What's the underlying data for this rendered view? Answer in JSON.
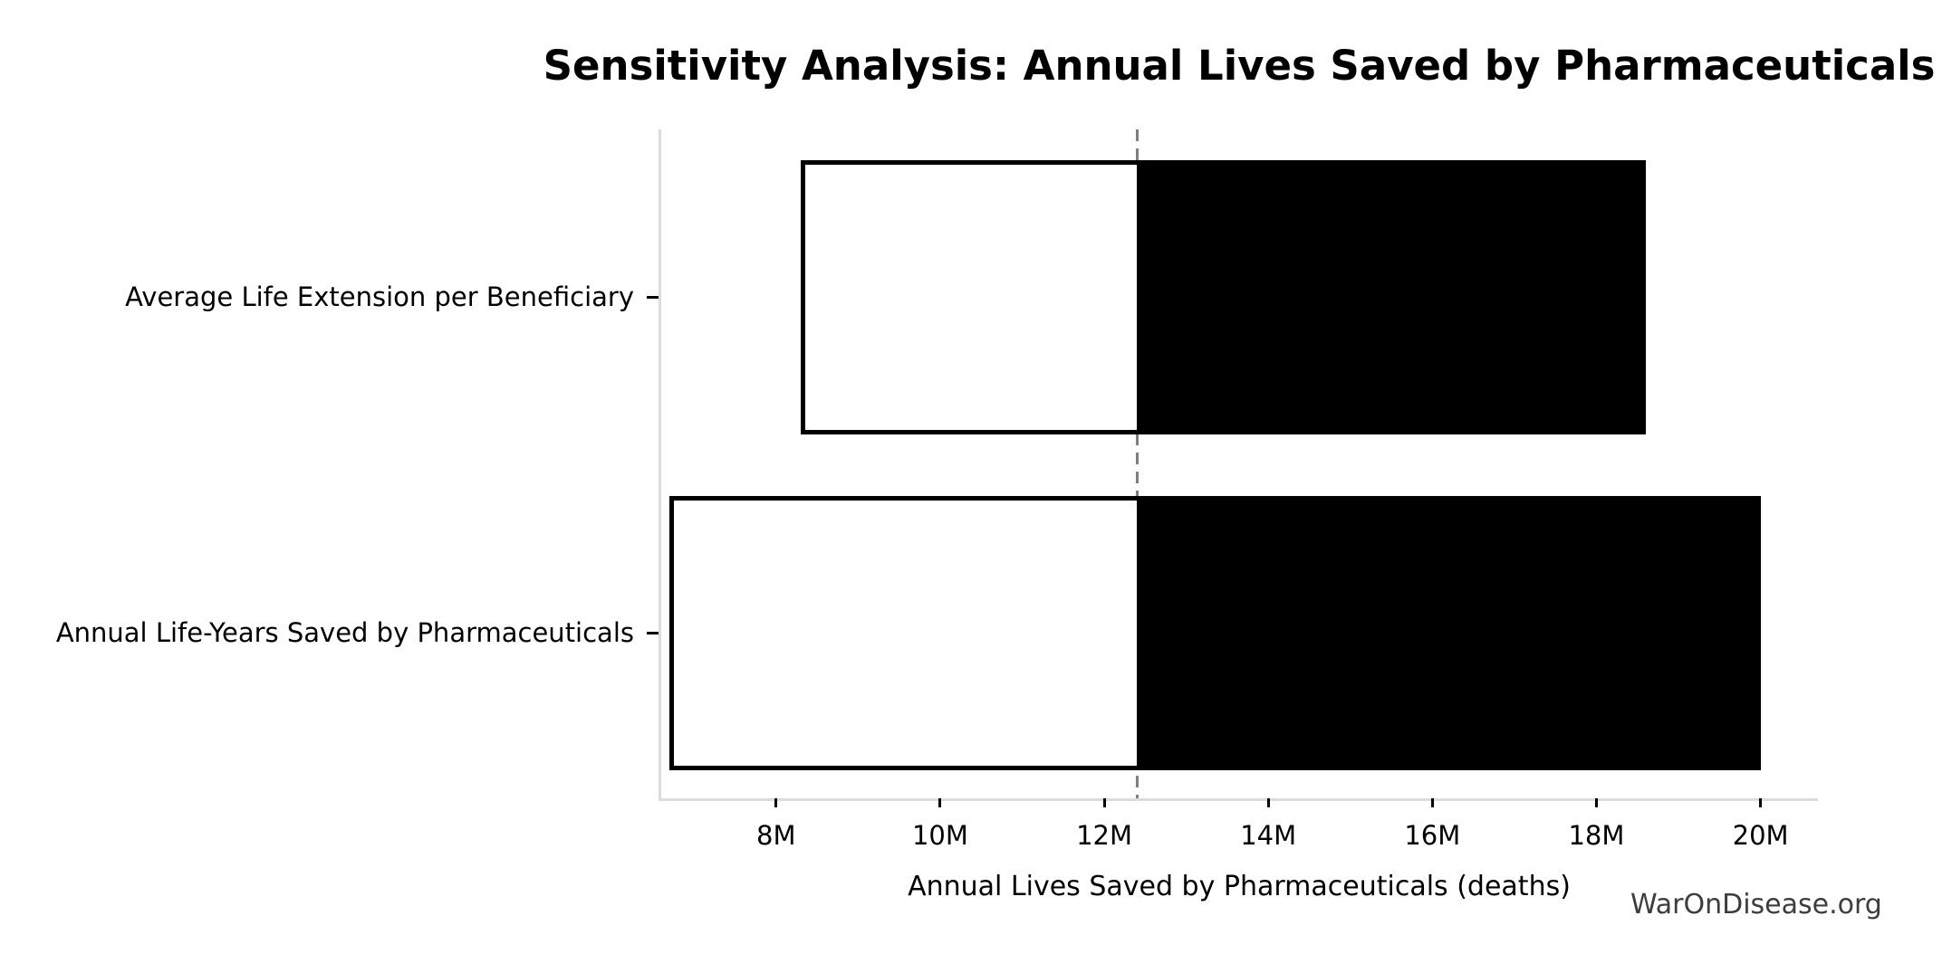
{
  "title": "Sensitivity Analysis: Annual Lives Saved by Pharmaceuticals",
  "watermark": "WarOnDisease.org",
  "chart_data": {
    "type": "bar",
    "subtype": "tornado-sensitivity",
    "orientation": "horizontal",
    "title": "Sensitivity Analysis: Annual Lives Saved by Pharmaceuticals",
    "xlabel": "Annual Lives Saved by Pharmaceuticals (deaths)",
    "ylabel": "",
    "unit": "millions of deaths",
    "baseline_value_millions": 12.4,
    "categories": [
      "Average Life Extension per Beneficiary",
      "Annual Life-Years Saved by Pharmaceuticals"
    ],
    "bars": [
      {
        "label": "Average Life Extension per Beneficiary",
        "low_millions": 8.3,
        "high_millions": 18.6
      },
      {
        "label": "Annual Life-Years Saved by Pharmaceuticals",
        "low_millions": 6.7,
        "high_millions": 20.0
      }
    ],
    "x_ticks": [
      "8M",
      "10M",
      "12M",
      "14M",
      "16M",
      "18M",
      "20M"
    ],
    "x_tick_values_millions": [
      8,
      10,
      12,
      14,
      16,
      18,
      20
    ],
    "xlim_millions": [
      6.6,
      20.7
    ],
    "grid": false,
    "legend": "none",
    "colors": {
      "bar_below_baseline_fill": "#ffffff",
      "bar_above_baseline_fill": "#000000",
      "bar_edge": "#000000",
      "baseline_dashed_line": "#7f7f7f",
      "axis_spine": "#dcdcdc",
      "tick_mark": "#000000",
      "text": "#000000",
      "watermark_text": "#3d3d3d",
      "background": "#ffffff"
    }
  }
}
